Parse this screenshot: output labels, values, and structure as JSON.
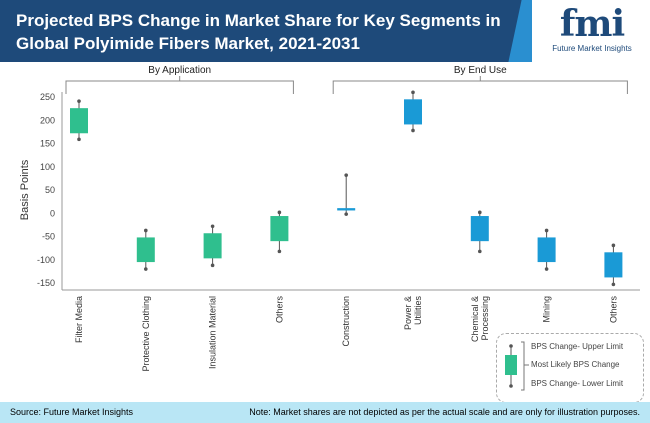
{
  "header": {
    "title": "Projected BPS Change in Market Share for Key Segments in Global Polyimide Fibers Market, 2021-2031",
    "logo_text": "fmi",
    "logo_subtitle": "Future Market Insights"
  },
  "footer": {
    "source": "Source: Future Market Insights",
    "note": "Note: Market shares are not depicted as per the actual scale and are only for illustration purposes."
  },
  "legend": {
    "upper": "BPS Change- Upper Limit",
    "likely": "Most Likely BPS Change",
    "lower": "BPS Change- Lower Limit"
  },
  "colors": {
    "application": "#2fbf8e",
    "end_use": "#1a9ad6"
  },
  "chart_data": {
    "type": "box",
    "ylabel": "Basis Points",
    "ylim": [
      -150,
      250
    ],
    "yticks": [
      250,
      200,
      150,
      100,
      50,
      0,
      -50,
      -100,
      -150
    ],
    "groups": [
      {
        "name": "By Application",
        "categories": [
          0,
          1,
          2,
          3
        ]
      },
      {
        "name": "By End Use",
        "categories": [
          4,
          5,
          6,
          7,
          8
        ]
      }
    ],
    "categories": [
      "Filter Media",
      "Protective Clothing",
      "Insulation Material",
      "Others",
      "Construction",
      "Power & Utilities",
      "Chemical & Processing",
      "Mining",
      "Others"
    ],
    "series": [
      {
        "group": "By Application",
        "upper": 241,
        "box_high": 226,
        "box_low": 172,
        "lower": 159
      },
      {
        "group": "By Application",
        "upper": -37,
        "box_high": -52,
        "box_low": -105,
        "lower": -120
      },
      {
        "group": "By Application",
        "upper": -28,
        "box_high": -43,
        "box_low": -97,
        "lower": -112
      },
      {
        "group": "By Application",
        "upper": 2,
        "box_high": -6,
        "box_low": -60,
        "lower": -82
      },
      {
        "group": "By End Use",
        "upper": 82,
        "box_high": 11,
        "box_low": 6,
        "lower": -2
      },
      {
        "group": "By End Use",
        "upper": 260,
        "box_high": 245,
        "box_low": 191,
        "lower": 178
      },
      {
        "group": "By End Use",
        "upper": 2,
        "box_high": -6,
        "box_low": -60,
        "lower": -82
      },
      {
        "group": "By End Use",
        "upper": -37,
        "box_high": -52,
        "box_low": -105,
        "lower": -120
      },
      {
        "group": "By End Use",
        "upper": -69,
        "box_high": -84,
        "box_low": -138,
        "lower": -153
      }
    ]
  }
}
